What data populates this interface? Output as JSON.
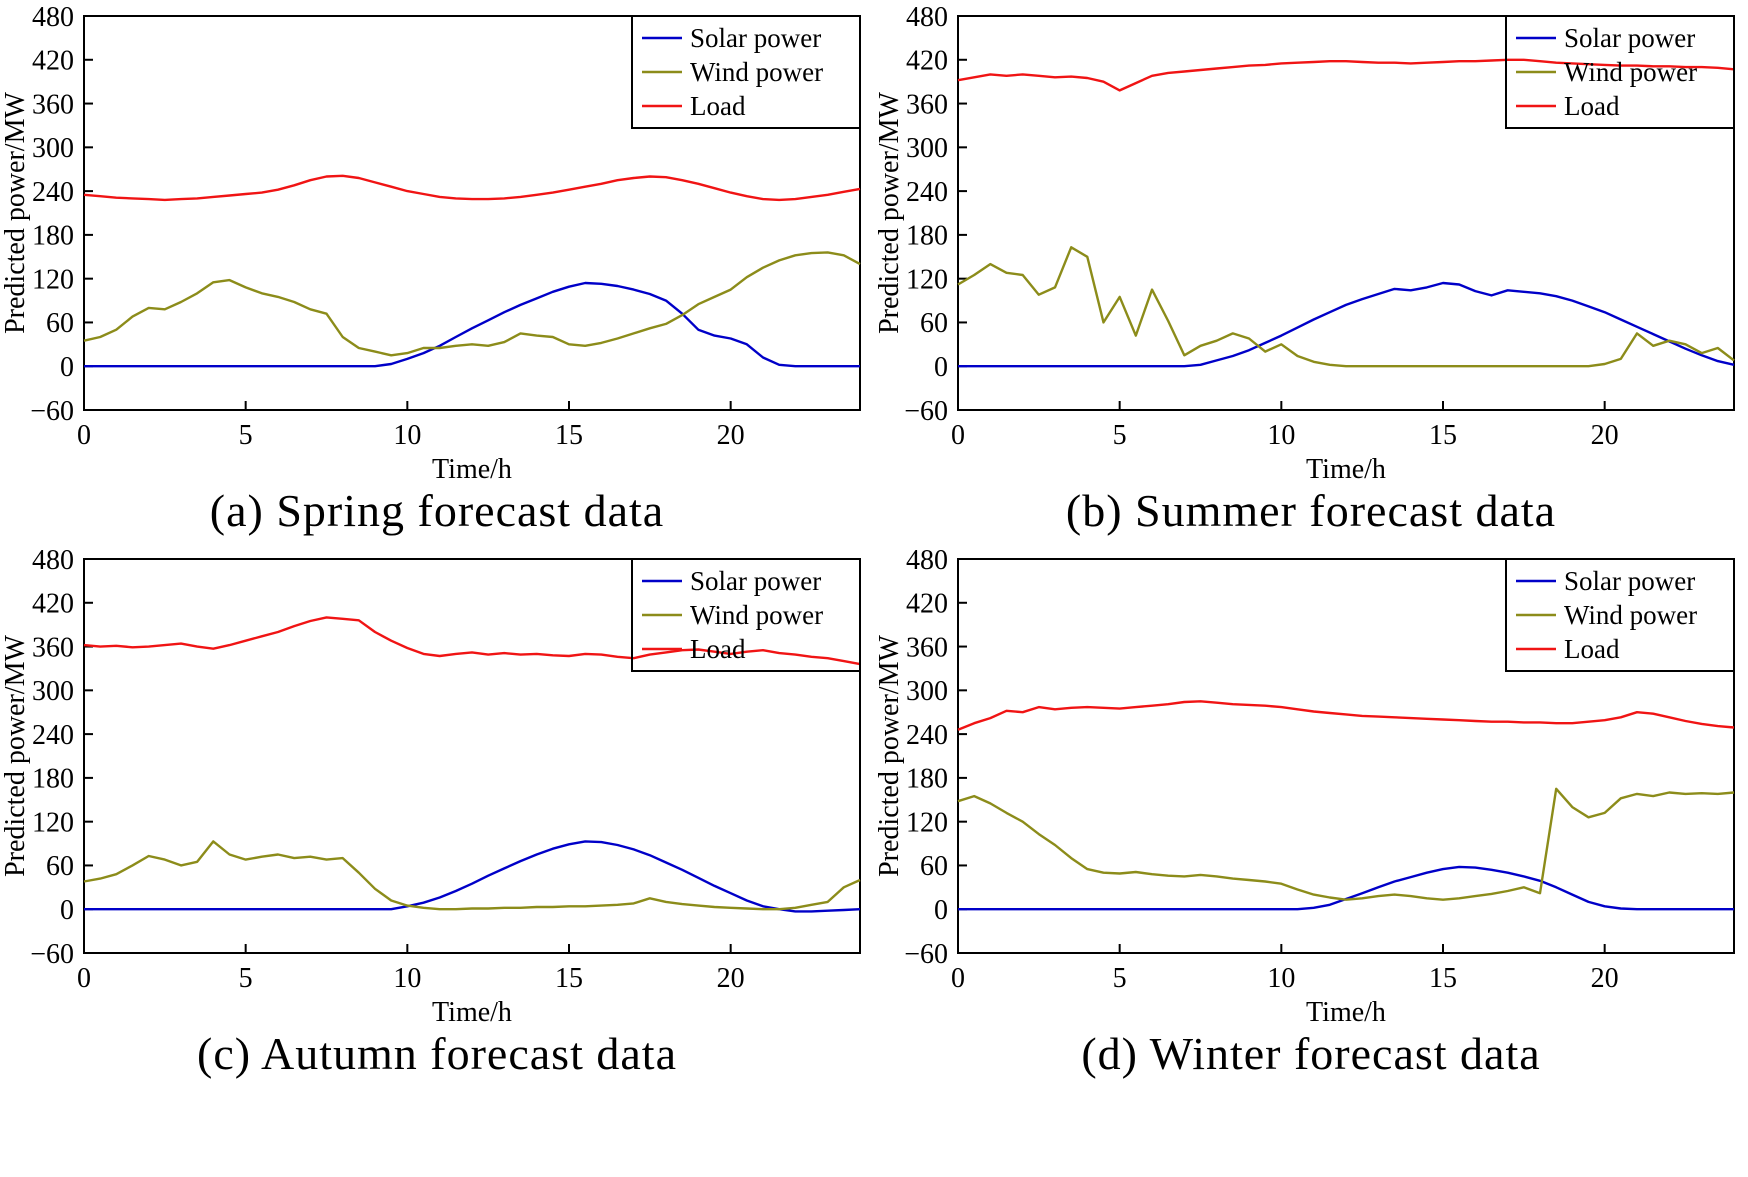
{
  "colors": {
    "solar": "#0000c8",
    "wind": "#8c8c1a",
    "load": "#f01414",
    "axis": "#000000"
  },
  "chart_data": [
    {
      "id": "spring",
      "type": "line",
      "caption": "(a) Spring forecast data",
      "xlabel": "Time/h",
      "ylabel": "Predicted power/MW",
      "xlim": [
        0,
        24
      ],
      "ylim": [
        -60,
        480
      ],
      "xticks": [
        0,
        5,
        10,
        15,
        20
      ],
      "yticks": [
        -60,
        0,
        60,
        120,
        180,
        240,
        300,
        360,
        420,
        480
      ],
      "x_start": 0,
      "x_step": 0.5,
      "legend_position": "top-right",
      "series": [
        {
          "name": "Solar power",
          "color_key": "solar",
          "y": [
            0,
            0,
            0,
            0,
            0,
            0,
            0,
            0,
            0,
            0,
            0,
            0,
            0,
            0,
            0,
            0,
            0,
            0,
            0,
            3,
            10,
            18,
            28,
            40,
            52,
            63,
            74,
            84,
            93,
            102,
            109,
            114,
            113,
            110,
            105,
            99,
            90,
            72,
            50,
            42,
            38,
            30,
            12,
            2,
            0,
            0,
            0,
            0,
            0
          ]
        },
        {
          "name": "Wind power",
          "color_key": "wind",
          "y": [
            35,
            40,
            50,
            68,
            80,
            78,
            88,
            100,
            115,
            118,
            108,
            100,
            95,
            88,
            78,
            72,
            40,
            25,
            20,
            15,
            18,
            25,
            25,
            28,
            30,
            28,
            33,
            45,
            42,
            40,
            30,
            28,
            32,
            38,
            45,
            52,
            58,
            70,
            85,
            95,
            105,
            122,
            135,
            145,
            152,
            155,
            156,
            152,
            140
          ]
        },
        {
          "name": "Load",
          "color_key": "load",
          "y": [
            235,
            233,
            231,
            230,
            229,
            228,
            229,
            230,
            232,
            234,
            236,
            238,
            242,
            248,
            255,
            260,
            261,
            258,
            252,
            246,
            240,
            236,
            232,
            230,
            229,
            229,
            230,
            232,
            235,
            238,
            242,
            246,
            250,
            255,
            258,
            260,
            259,
            255,
            250,
            244,
            238,
            233,
            229,
            228,
            229,
            232,
            235,
            239,
            243
          ]
        }
      ]
    },
    {
      "id": "summer",
      "type": "line",
      "caption": "(b) Summer forecast data",
      "xlabel": "Time/h",
      "ylabel": "Predicted power/MW",
      "xlim": [
        0,
        24
      ],
      "ylim": [
        -60,
        480
      ],
      "xticks": [
        0,
        5,
        10,
        15,
        20
      ],
      "yticks": [
        -60,
        0,
        60,
        120,
        180,
        240,
        300,
        360,
        420,
        480
      ],
      "x_start": 0,
      "x_step": 0.5,
      "legend_position": "top-right",
      "series": [
        {
          "name": "Solar power",
          "color_key": "solar",
          "y": [
            0,
            0,
            0,
            0,
            0,
            0,
            0,
            0,
            0,
            0,
            0,
            0,
            0,
            0,
            0,
            2,
            8,
            14,
            22,
            32,
            42,
            53,
            64,
            74,
            84,
            92,
            99,
            106,
            104,
            108,
            114,
            112,
            103,
            97,
            104,
            102,
            100,
            96,
            90,
            82,
            74,
            64,
            54,
            44,
            34,
            24,
            15,
            7,
            2
          ]
        },
        {
          "name": "Wind power",
          "color_key": "wind",
          "y": [
            112,
            125,
            140,
            128,
            125,
            98,
            108,
            163,
            150,
            60,
            95,
            42,
            105,
            62,
            15,
            28,
            35,
            45,
            38,
            20,
            30,
            14,
            6,
            2,
            0,
            0,
            0,
            0,
            0,
            0,
            0,
            0,
            0,
            0,
            0,
            0,
            0,
            0,
            0,
            0,
            3,
            10,
            45,
            28,
            35,
            30,
            18,
            25,
            8
          ]
        },
        {
          "name": "Load",
          "color_key": "load",
          "y": [
            392,
            396,
            400,
            398,
            400,
            398,
            396,
            397,
            395,
            390,
            378,
            388,
            398,
            402,
            404,
            406,
            408,
            410,
            412,
            413,
            415,
            416,
            417,
            418,
            418,
            417,
            416,
            416,
            415,
            416,
            417,
            418,
            418,
            419,
            420,
            420,
            418,
            416,
            415,
            414,
            413,
            412,
            412,
            411,
            411,
            410,
            410,
            409,
            407
          ]
        }
      ]
    },
    {
      "id": "autumn",
      "type": "line",
      "caption": "(c) Autumn forecast data",
      "xlabel": "Time/h",
      "ylabel": "Predicted power/MW",
      "xlim": [
        0,
        24
      ],
      "ylim": [
        -60,
        480
      ],
      "xticks": [
        0,
        5,
        10,
        15,
        20
      ],
      "yticks": [
        -60,
        0,
        60,
        120,
        180,
        240,
        300,
        360,
        420,
        480
      ],
      "x_start": 0,
      "x_step": 0.5,
      "legend_position": "top-right",
      "series": [
        {
          "name": "Solar power",
          "color_key": "solar",
          "y": [
            0,
            0,
            0,
            0,
            0,
            0,
            0,
            0,
            0,
            0,
            0,
            0,
            0,
            0,
            0,
            0,
            0,
            0,
            0,
            0,
            4,
            9,
            16,
            25,
            35,
            46,
            56,
            66,
            75,
            83,
            89,
            93,
            92,
            88,
            82,
            74,
            64,
            54,
            43,
            32,
            22,
            12,
            4,
            0,
            -3,
            -3,
            -2,
            -1,
            0
          ]
        },
        {
          "name": "Wind power",
          "color_key": "wind",
          "y": [
            38,
            42,
            48,
            60,
            73,
            68,
            60,
            65,
            93,
            75,
            68,
            72,
            75,
            70,
            72,
            68,
            70,
            50,
            28,
            12,
            5,
            2,
            0,
            0,
            1,
            1,
            2,
            2,
            3,
            3,
            4,
            4,
            5,
            6,
            8,
            15,
            10,
            7,
            5,
            3,
            2,
            1,
            0,
            0,
            2,
            6,
            10,
            30,
            40
          ]
        },
        {
          "name": "Load",
          "color_key": "load",
          "y": [
            362,
            360,
            361,
            359,
            360,
            362,
            364,
            360,
            357,
            362,
            368,
            374,
            380,
            388,
            395,
            400,
            398,
            396,
            380,
            368,
            358,
            350,
            347,
            350,
            352,
            349,
            351,
            349,
            350,
            348,
            347,
            350,
            349,
            346,
            344,
            349,
            352,
            355,
            356,
            353,
            350,
            353,
            355,
            351,
            349,
            346,
            344,
            340,
            336
          ]
        }
      ]
    },
    {
      "id": "winter",
      "type": "line",
      "caption": "(d) Winter forecast data",
      "xlabel": "Time/h",
      "ylabel": "Predicted power/MW",
      "xlim": [
        0,
        24
      ],
      "ylim": [
        -60,
        480
      ],
      "xticks": [
        0,
        5,
        10,
        15,
        20
      ],
      "yticks": [
        -60,
        0,
        60,
        120,
        180,
        240,
        300,
        360,
        420,
        480
      ],
      "x_start": 0,
      "x_step": 0.5,
      "legend_position": "top-right",
      "series": [
        {
          "name": "Solar power",
          "color_key": "solar",
          "y": [
            0,
            0,
            0,
            0,
            0,
            0,
            0,
            0,
            0,
            0,
            0,
            0,
            0,
            0,
            0,
            0,
            0,
            0,
            0,
            0,
            0,
            0,
            2,
            6,
            14,
            22,
            30,
            38,
            44,
            50,
            55,
            58,
            57,
            54,
            50,
            45,
            39,
            30,
            20,
            10,
            4,
            1,
            0,
            0,
            0,
            0,
            0,
            0,
            0
          ]
        },
        {
          "name": "Wind power",
          "color_key": "wind",
          "y": [
            148,
            155,
            145,
            132,
            120,
            103,
            88,
            70,
            55,
            50,
            49,
            51,
            48,
            46,
            45,
            47,
            45,
            42,
            40,
            38,
            35,
            27,
            20,
            16,
            13,
            15,
            18,
            20,
            18,
            15,
            13,
            15,
            18,
            21,
            25,
            30,
            22,
            165,
            140,
            126,
            132,
            152,
            158,
            155,
            160,
            158,
            159,
            158,
            160
          ]
        },
        {
          "name": "Load",
          "color_key": "load",
          "y": [
            246,
            255,
            262,
            272,
            270,
            277,
            274,
            276,
            277,
            276,
            275,
            277,
            279,
            281,
            284,
            285,
            283,
            281,
            280,
            279,
            277,
            274,
            271,
            269,
            267,
            265,
            264,
            263,
            262,
            261,
            260,
            259,
            258,
            257,
            257,
            256,
            256,
            255,
            255,
            257,
            259,
            263,
            270,
            268,
            263,
            258,
            254,
            251,
            249
          ]
        }
      ]
    }
  ]
}
